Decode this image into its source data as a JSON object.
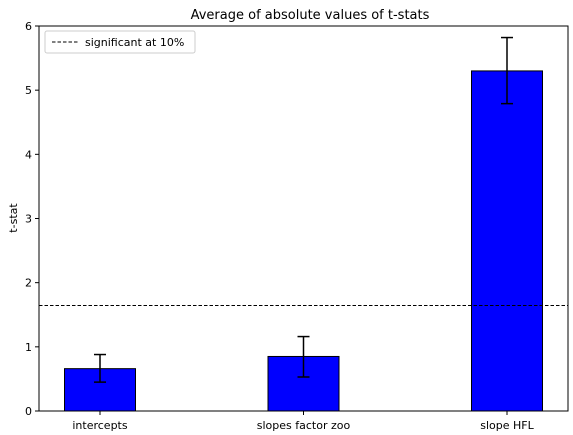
{
  "chart_data": {
    "type": "bar",
    "title": "Average of absolute values of t-stats",
    "xlabel": "",
    "ylabel": "t-stat",
    "categories": [
      "intercepts",
      "slopes factor zoo",
      "slope HFL"
    ],
    "values": [
      0.66,
      0.85,
      5.3
    ],
    "error_low": [
      0.45,
      0.53,
      4.79
    ],
    "error_high": [
      0.88,
      1.16,
      5.82
    ],
    "ylim": [
      0,
      6
    ],
    "yticks": [
      "0",
      "1",
      "2",
      "3",
      "4",
      "5",
      "6"
    ],
    "bar_color": "#0000ff",
    "bar_edge_color": "#000000",
    "reference_line": {
      "value": 1.645,
      "label": "significant at 10%",
      "style": "dashed",
      "color": "#000000"
    },
    "legend_position": "top-left",
    "grid": false
  }
}
